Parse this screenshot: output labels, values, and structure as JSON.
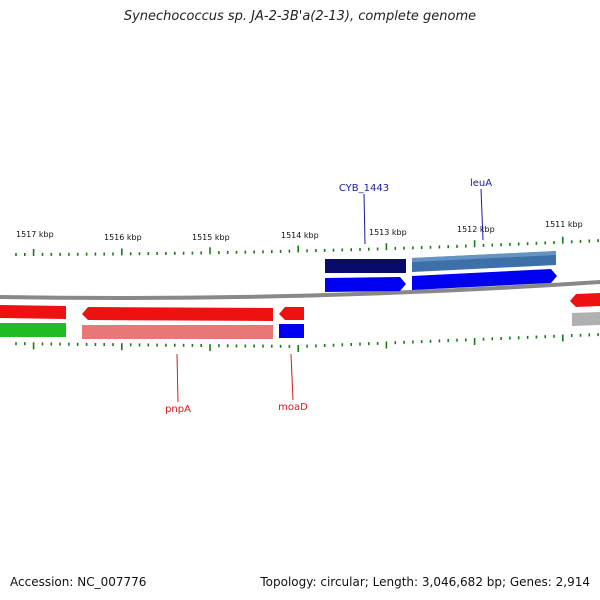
{
  "title": "Synechococcus sp. JA-2-3B'a(2-13), complete genome",
  "footer": {
    "accession": "Accession: NC_007776",
    "summary": "Topology: circular; Length: 3,046,682 bp; Genes: 2,914"
  },
  "colors": {
    "backbone": "#888888",
    "tick": "#1a7a1a",
    "gene_label_forward": "#1a1aa6",
    "gene_label_reverse": "#d81b1b",
    "forward_cds": "#0000f0",
    "forward_gene_dark": "#0a0a6a",
    "forward_gene_mid": "#3d6fa8",
    "reverse_cds": "#ee1111",
    "reverse_gene": "#e87878",
    "green_feature": "#22bb22",
    "grey_feature": "#b0b0b0"
  },
  "scale_labels": [
    "1517 kbp",
    "1516 kbp",
    "1515 kbp",
    "1514 kbp",
    "1513 kbp",
    "1512 kbp",
    "1511 kbp"
  ],
  "gene_labels": [
    {
      "text": "CYB_1443",
      "strand": "forward"
    },
    {
      "text": "leuA",
      "strand": "forward"
    },
    {
      "text": "pnpA",
      "strand": "reverse"
    },
    {
      "text": "moaD",
      "strand": "reverse"
    }
  ]
}
